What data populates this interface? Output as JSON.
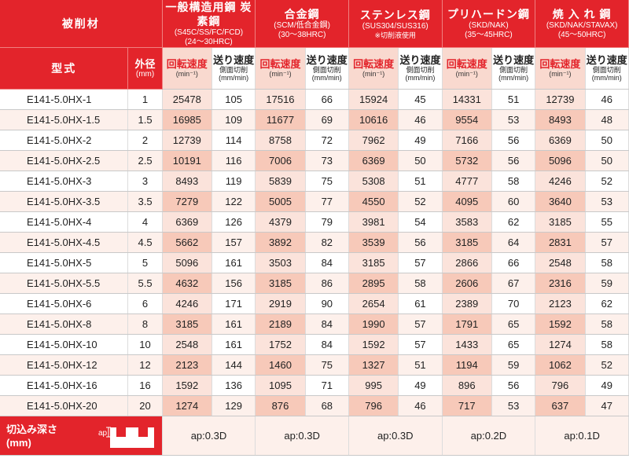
{
  "header": {
    "work_material_label": "被削材",
    "model_label": "型式",
    "diameter_label": "外径",
    "diameter_unit": "(mm)",
    "speed_label": "回転速度",
    "speed_unit": "(min⁻¹)",
    "feed_label": "送り速度",
    "feed_sub": "側面切削",
    "feed_unit": "(mm/min)"
  },
  "materials": [
    {
      "name": "一般構造用鋼 炭素鋼",
      "sub": "(S45C/SS/FC/FCD)",
      "hardness": "(24〜30HRC)"
    },
    {
      "name": "合金鋼",
      "sub": "(SCM/低合金鋼)",
      "hardness": "(30〜38HRC)"
    },
    {
      "name": "ステンレス鋼",
      "sub": "(SUS304/SUS316)",
      "hardness": "※切削液使用"
    },
    {
      "name": "プリハードン鋼",
      "sub": "(SKD/NAK)",
      "hardness": "(35〜45HRC)"
    },
    {
      "name": "焼 入 れ 鋼",
      "sub": "(SKD/NAK/STAVAX)",
      "hardness": "(45〜50HRC)"
    }
  ],
  "rows": [
    {
      "model": "E141-5.0HX-1",
      "dia": "1",
      "v": [
        "25478",
        "105",
        "17516",
        "66",
        "15924",
        "45",
        "14331",
        "51",
        "12739",
        "46"
      ]
    },
    {
      "model": "E141-5.0HX-1.5",
      "dia": "1.5",
      "v": [
        "16985",
        "109",
        "11677",
        "69",
        "10616",
        "46",
        "9554",
        "53",
        "8493",
        "48"
      ]
    },
    {
      "model": "E141-5.0HX-2",
      "dia": "2",
      "v": [
        "12739",
        "114",
        "8758",
        "72",
        "7962",
        "49",
        "7166",
        "56",
        "6369",
        "50"
      ]
    },
    {
      "model": "E141-5.0HX-2.5",
      "dia": "2.5",
      "v": [
        "10191",
        "116",
        "7006",
        "73",
        "6369",
        "50",
        "5732",
        "56",
        "5096",
        "50"
      ]
    },
    {
      "model": "E141-5.0HX-3",
      "dia": "3",
      "v": [
        "8493",
        "119",
        "5839",
        "75",
        "5308",
        "51",
        "4777",
        "58",
        "4246",
        "52"
      ]
    },
    {
      "model": "E141-5.0HX-3.5",
      "dia": "3.5",
      "v": [
        "7279",
        "122",
        "5005",
        "77",
        "4550",
        "52",
        "4095",
        "60",
        "3640",
        "53"
      ]
    },
    {
      "model": "E141-5.0HX-4",
      "dia": "4",
      "v": [
        "6369",
        "126",
        "4379",
        "79",
        "3981",
        "54",
        "3583",
        "62",
        "3185",
        "55"
      ]
    },
    {
      "model": "E141-5.0HX-4.5",
      "dia": "4.5",
      "v": [
        "5662",
        "157",
        "3892",
        "82",
        "3539",
        "56",
        "3185",
        "64",
        "2831",
        "57"
      ]
    },
    {
      "model": "E141-5.0HX-5",
      "dia": "5",
      "v": [
        "5096",
        "161",
        "3503",
        "84",
        "3185",
        "57",
        "2866",
        "66",
        "2548",
        "58"
      ]
    },
    {
      "model": "E141-5.0HX-5.5",
      "dia": "5.5",
      "v": [
        "4632",
        "156",
        "3185",
        "86",
        "2895",
        "58",
        "2606",
        "67",
        "2316",
        "59"
      ]
    },
    {
      "model": "E141-5.0HX-6",
      "dia": "6",
      "v": [
        "4246",
        "171",
        "2919",
        "90",
        "2654",
        "61",
        "2389",
        "70",
        "2123",
        "62"
      ]
    },
    {
      "model": "E141-5.0HX-8",
      "dia": "8",
      "v": [
        "3185",
        "161",
        "2189",
        "84",
        "1990",
        "57",
        "1791",
        "65",
        "1592",
        "58"
      ]
    },
    {
      "model": "E141-5.0HX-10",
      "dia": "10",
      "v": [
        "2548",
        "161",
        "1752",
        "84",
        "1592",
        "57",
        "1433",
        "65",
        "1274",
        "58"
      ]
    },
    {
      "model": "E141-5.0HX-12",
      "dia": "12",
      "v": [
        "2123",
        "144",
        "1460",
        "75",
        "1327",
        "51",
        "1194",
        "59",
        "1062",
        "52"
      ]
    },
    {
      "model": "E141-5.0HX-16",
      "dia": "16",
      "v": [
        "1592",
        "136",
        "1095",
        "71",
        "995",
        "49",
        "896",
        "56",
        "796",
        "49"
      ]
    },
    {
      "model": "E141-5.0HX-20",
      "dia": "20",
      "v": [
        "1274",
        "129",
        "876",
        "68",
        "796",
        "46",
        "717",
        "53",
        "637",
        "47"
      ]
    }
  ],
  "footer": {
    "label_line1": "切込み深さ",
    "label_line2": "(mm)",
    "icon_label": "ap",
    "values": [
      "ap:0.3D",
      "ap:0.3D",
      "ap:0.3D",
      "ap:0.2D",
      "ap:0.1D"
    ]
  },
  "colors": {
    "header_red": "#e3242b",
    "speed_column_tint": "#fbe3db",
    "speed_column_tint_alt": "#f7c9b9"
  }
}
